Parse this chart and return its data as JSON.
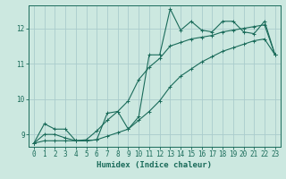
{
  "title": "",
  "xlabel": "Humidex (Indice chaleur)",
  "bg_color": "#cce8e0",
  "grid_color": "#aacccc",
  "line_color": "#1a6b5a",
  "xlim": [
    -0.5,
    23.5
  ],
  "ylim": [
    8.65,
    12.65
  ],
  "yticks": [
    9,
    10,
    11,
    12
  ],
  "xticks": [
    0,
    1,
    2,
    3,
    4,
    5,
    6,
    7,
    8,
    9,
    10,
    11,
    12,
    13,
    14,
    15,
    16,
    17,
    18,
    19,
    20,
    21,
    22,
    23
  ],
  "line1_x": [
    0,
    1,
    2,
    3,
    4,
    5,
    6,
    7,
    8,
    9,
    10,
    11,
    12,
    13,
    14,
    15,
    16,
    17,
    18,
    19,
    20,
    21,
    22,
    23
  ],
  "line1_y": [
    8.75,
    9.3,
    9.15,
    9.15,
    8.82,
    8.82,
    8.85,
    9.6,
    9.65,
    9.15,
    9.5,
    11.25,
    11.25,
    12.55,
    11.95,
    12.2,
    11.95,
    11.9,
    12.2,
    12.2,
    11.9,
    11.85,
    12.2,
    11.25
  ],
  "line2_x": [
    0,
    1,
    2,
    3,
    4,
    5,
    6,
    7,
    8,
    9,
    10,
    11,
    12,
    13,
    14,
    15,
    16,
    17,
    18,
    19,
    20,
    21,
    22,
    23
  ],
  "line2_y": [
    8.75,
    9.0,
    9.0,
    8.9,
    8.82,
    8.85,
    9.1,
    9.4,
    9.65,
    9.95,
    10.55,
    10.9,
    11.15,
    11.5,
    11.6,
    11.7,
    11.75,
    11.8,
    11.9,
    11.95,
    12.0,
    12.05,
    12.1,
    11.25
  ],
  "line3_x": [
    0,
    1,
    2,
    3,
    4,
    5,
    6,
    7,
    8,
    9,
    10,
    11,
    12,
    13,
    14,
    15,
    16,
    17,
    18,
    19,
    20,
    21,
    22,
    23
  ],
  "line3_y": [
    8.75,
    8.82,
    8.82,
    8.82,
    8.82,
    8.82,
    8.85,
    8.95,
    9.05,
    9.15,
    9.4,
    9.65,
    9.95,
    10.35,
    10.65,
    10.85,
    11.05,
    11.2,
    11.35,
    11.45,
    11.55,
    11.65,
    11.7,
    11.25
  ]
}
